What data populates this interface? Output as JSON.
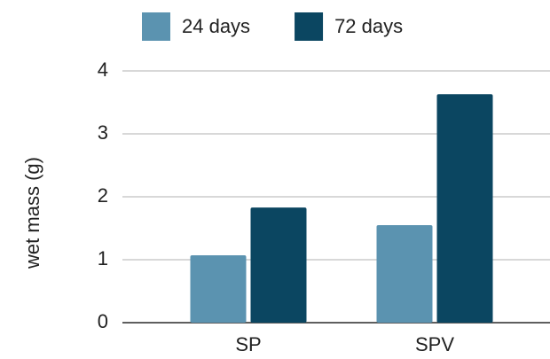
{
  "chart_data": {
    "type": "bar",
    "y_label": "wet mass (g)",
    "categories": [
      "SP",
      "SPV"
    ],
    "series": [
      {
        "name": "24 days",
        "color": "#5b93b0",
        "values": [
          1.07,
          1.55
        ]
      },
      {
        "name": "72 days",
        "color": "#0b4661",
        "values": [
          1.83,
          3.63
        ]
      }
    ],
    "ylim": [
      0,
      4
    ],
    "yticks": [
      0,
      1,
      2,
      3,
      4
    ],
    "grid": true,
    "legend": "top"
  }
}
